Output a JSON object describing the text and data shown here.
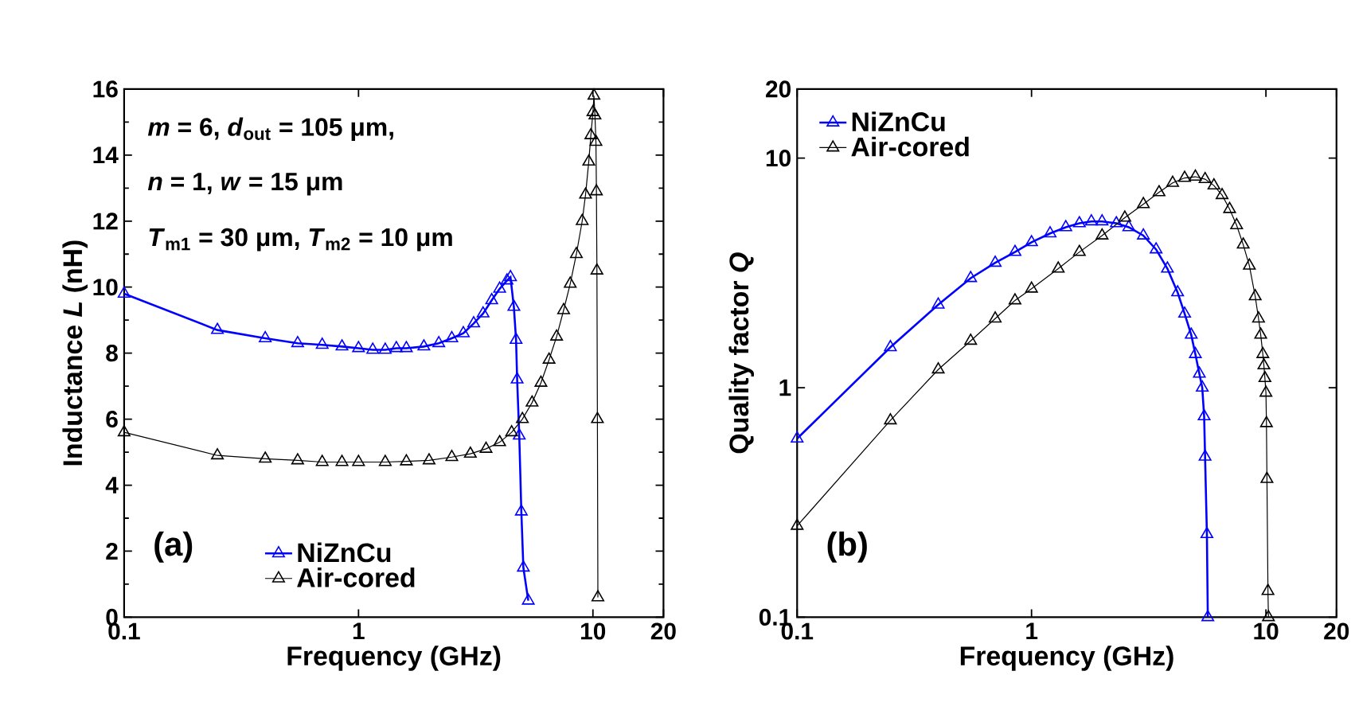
{
  "chart_data": [
    {
      "type": "line",
      "xlabel": "Frequency (GHz)",
      "ylabel": "Inductance *L* (nH)",
      "log": "x",
      "xlim": [
        0.1,
        20
      ],
      "ylim": [
        0,
        16
      ],
      "xticks": [
        0.1,
        1,
        10,
        20
      ],
      "yticks": [
        0,
        2,
        4,
        6,
        8,
        10,
        12,
        14,
        16
      ],
      "grid": false,
      "legend": "bottom",
      "marker": "triangle",
      "line_style": "solid",
      "annotations": [
        "*m* = 6, *d*$_{out}$ = 105 μm,",
        "*n* = 1, *w* = 15 μm",
        "*T*$_{m1}$ = 30 μm, *T*$_{m2}$ = 10 μm",
        "(a)"
      ],
      "series": [
        {
          "name": "NiZnCu",
          "color": "#0000ff",
          "x": [
            0.1,
            0.25,
            0.4,
            0.55,
            0.7,
            0.85,
            1.0,
            1.15,
            1.3,
            1.45,
            1.6,
            1.9,
            2.2,
            2.5,
            2.8,
            3.1,
            3.4,
            3.7,
            4.0,
            4.3,
            4.45,
            4.6,
            4.7,
            4.75,
            4.85,
            4.95,
            5.05,
            5.3
          ],
          "values": [
            9.8,
            8.7,
            8.45,
            8.3,
            8.25,
            8.2,
            8.15,
            8.1,
            8.1,
            8.15,
            8.15,
            8.2,
            8.3,
            8.45,
            8.6,
            8.9,
            9.2,
            9.6,
            9.95,
            10.2,
            10.3,
            9.4,
            8.4,
            7.2,
            5.5,
            3.2,
            1.5,
            0.5
          ]
        },
        {
          "name": "Air-cored",
          "color": "#000000",
          "x": [
            0.1,
            0.25,
            0.4,
            0.55,
            0.7,
            0.85,
            1.0,
            1.3,
            1.6,
            2.0,
            2.5,
            3.0,
            3.5,
            4.0,
            4.5,
            5.0,
            5.5,
            6.0,
            6.5,
            7.0,
            7.5,
            8.0,
            8.5,
            9.0,
            9.3,
            9.6,
            9.8,
            10.0,
            10.1,
            10.2,
            10.3,
            10.35,
            10.4,
            10.45,
            10.5
          ],
          "values": [
            5.6,
            4.9,
            4.8,
            4.75,
            4.7,
            4.7,
            4.7,
            4.7,
            4.72,
            4.75,
            4.85,
            4.95,
            5.1,
            5.3,
            5.6,
            6.0,
            6.5,
            7.1,
            7.8,
            8.5,
            9.3,
            10.1,
            11.0,
            12.0,
            12.8,
            13.8,
            14.6,
            15.3,
            15.8,
            15.2,
            14.4,
            12.9,
            10.5,
            6.0,
            0.6
          ]
        }
      ]
    },
    {
      "type": "line",
      "xlabel": "Frequency (GHz)",
      "ylabel": "Quality factor *Q*",
      "log": "xy",
      "xlim": [
        0.1,
        20
      ],
      "ylim": [
        0.1,
        20
      ],
      "xticks": [
        0.1,
        1,
        10,
        20
      ],
      "yticks": [
        0.1,
        1,
        10,
        20
      ],
      "grid": false,
      "legend": "top left",
      "marker": "triangle",
      "line_style": "solid",
      "annotations": [
        "(b)"
      ],
      "series": [
        {
          "name": "NiZnCu",
          "color": "#0000ff",
          "x": [
            0.1,
            0.25,
            0.4,
            0.55,
            0.7,
            0.85,
            1.0,
            1.2,
            1.4,
            1.6,
            1.8,
            2.0,
            2.3,
            2.6,
            3.0,
            3.4,
            3.8,
            4.2,
            4.5,
            4.8,
            5.0,
            5.2,
            5.35,
            5.45,
            5.5,
            5.6,
            5.65
          ],
          "values": [
            0.6,
            1.5,
            2.3,
            3.0,
            3.5,
            3.9,
            4.3,
            4.7,
            5.0,
            5.2,
            5.3,
            5.3,
            5.2,
            5.0,
            4.6,
            4.0,
            3.3,
            2.6,
            2.1,
            1.7,
            1.4,
            1.15,
            1.0,
            0.75,
            0.5,
            0.23,
            0.1
          ]
        },
        {
          "name": "Air-cored",
          "color": "#000000",
          "x": [
            0.1,
            0.25,
            0.4,
            0.55,
            0.7,
            0.85,
            1.0,
            1.3,
            1.6,
            2.0,
            2.5,
            3.0,
            3.5,
            4.0,
            4.5,
            5.0,
            5.5,
            6.0,
            6.5,
            7.0,
            7.5,
            8.0,
            8.5,
            9.0,
            9.3,
            9.5,
            9.7,
            9.8,
            9.9,
            10.0,
            10.05,
            10.1,
            10.2,
            10.25
          ],
          "values": [
            0.25,
            0.72,
            1.2,
            1.6,
            2.0,
            2.4,
            2.7,
            3.3,
            3.9,
            4.6,
            5.5,
            6.3,
            7.1,
            7.8,
            8.2,
            8.3,
            8.1,
            7.6,
            6.9,
            6.0,
            5.1,
            4.2,
            3.4,
            2.5,
            2.0,
            1.7,
            1.4,
            1.25,
            1.1,
            0.95,
            0.7,
            0.4,
            0.13,
            0.1
          ]
        }
      ]
    }
  ]
}
